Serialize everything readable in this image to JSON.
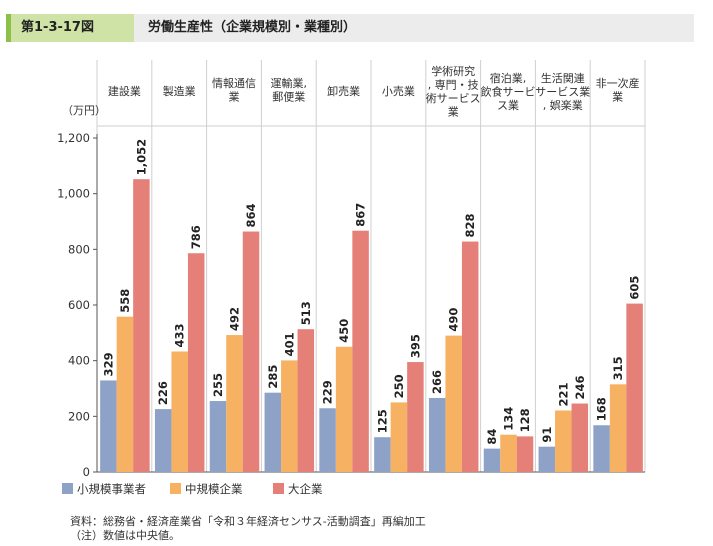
{
  "header": {
    "figure_number": "第1-3-17図",
    "title": "労働生産性（企業規模別・業種別）"
  },
  "chart_data": {
    "type": "bar",
    "unit_label": "（万円）",
    "ylim": [
      0,
      1200
    ],
    "yticks": [
      0,
      200,
      400,
      600,
      800,
      1000,
      1200
    ],
    "ytick_labels": [
      "0",
      "200",
      "400",
      "600",
      "800",
      "1,000",
      "1,200"
    ],
    "categories": [
      [
        "建設業"
      ],
      [
        "製造業"
      ],
      [
        "情報通信",
        "業"
      ],
      [
        "運輸業,",
        "郵便業"
      ],
      [
        "卸売業"
      ],
      [
        "小売業"
      ],
      [
        "学術研究",
        ", 専門・技",
        "術サービス",
        "業"
      ],
      [
        "宿泊業,",
        "飲食サービ",
        "ス業"
      ],
      [
        "生活関連",
        "サービス業",
        ", 娯楽業"
      ],
      [
        "非一次産",
        "業"
      ]
    ],
    "series": [
      {
        "name": "小規模事業者",
        "color": "#8ea2c8",
        "values": [
          329,
          226,
          255,
          285,
          229,
          125,
          266,
          84,
          91,
          168
        ],
        "labels": [
          "329",
          "226",
          "255",
          "285",
          "229",
          "125",
          "266",
          "84",
          "91",
          "168"
        ]
      },
      {
        "name": "中規模企業",
        "color": "#f6b262",
        "values": [
          558,
          433,
          492,
          401,
          450,
          250,
          490,
          134,
          221,
          315
        ],
        "labels": [
          "558",
          "433",
          "492",
          "401",
          "450",
          "250",
          "490",
          "134",
          "221",
          "315"
        ]
      },
      {
        "name": "大企業",
        "color": "#e58078",
        "values": [
          1052,
          786,
          864,
          513,
          867,
          395,
          828,
          128,
          246,
          605
        ],
        "labels": [
          "1,052",
          "786",
          "864",
          "513",
          "867",
          "395",
          "828",
          "128",
          "246",
          "605"
        ]
      }
    ]
  },
  "notes": {
    "source": "資料：総務省・経済産業省「令和３年経済センサス-活動調査」再編加工",
    "note": "（注）数値は中央値。"
  }
}
